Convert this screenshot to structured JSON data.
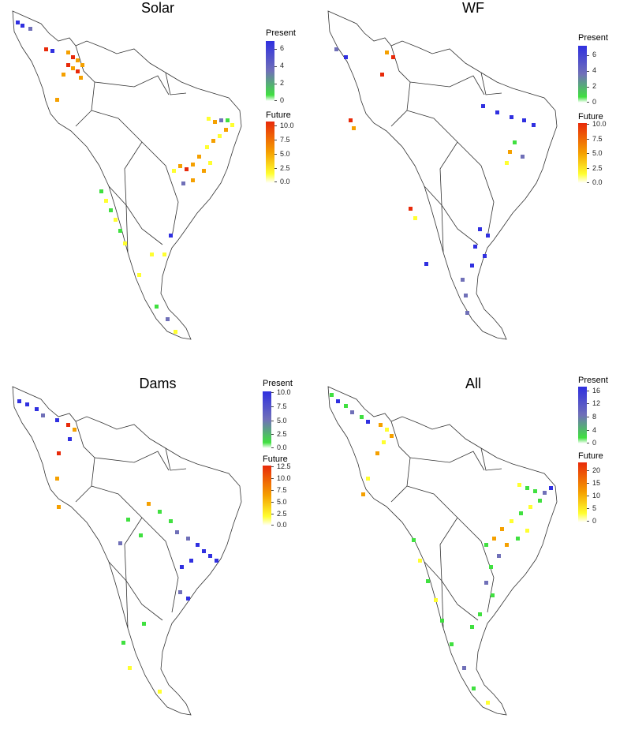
{
  "panels": [
    {
      "title": "Solar",
      "present_legend": {
        "title": "Present",
        "ticks": [
          "6",
          "4",
          "2",
          "0"
        ]
      },
      "future_legend": {
        "title": "Future",
        "ticks": [
          "10.0",
          "7.5",
          "5.0",
          "2.5",
          "0.0"
        ]
      }
    },
    {
      "title": "WF",
      "present_legend": {
        "title": "Present",
        "ticks": [
          "6",
          "4",
          "2",
          "0"
        ]
      },
      "future_legend": {
        "title": "Future",
        "ticks": [
          "10.0",
          "7.5",
          "5.0",
          "2.5",
          "0.0"
        ]
      }
    },
    {
      "title": "Dams",
      "present_legend": {
        "title": "Present",
        "ticks": [
          "10.0",
          "7.5",
          "5.0",
          "2.5",
          "0.0"
        ]
      },
      "future_legend": {
        "title": "Future",
        "ticks": [
          "12.5",
          "10.0",
          "7.5",
          "5.0",
          "2.5",
          "0.0"
        ]
      }
    },
    {
      "title": "All",
      "present_legend": {
        "title": "Present",
        "ticks": [
          "16",
          "12",
          "8",
          "4",
          "0"
        ]
      },
      "future_legend": {
        "title": "Future",
        "ticks": [
          "20",
          "15",
          "10",
          "5",
          "0"
        ]
      }
    }
  ],
  "colors": {
    "present_high": "#3030e0",
    "present_mid": "#7070b8",
    "present_low": "#40e040",
    "future_high": "#e82a0a",
    "future_mid": "#f5a000",
    "future_low": "#ffff30",
    "outline": "#333333"
  }
}
